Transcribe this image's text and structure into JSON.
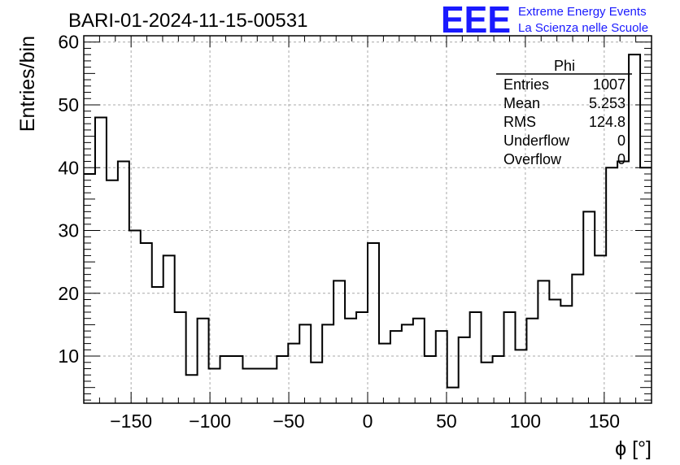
{
  "chart_data": {
    "type": "bar",
    "style": "step-histogram",
    "title": "BARI-01-2024-11-15-00531",
    "xlabel": "ϕ [°]",
    "ylabel": "Entries/bin",
    "xlim": [
      -180,
      180
    ],
    "ylim": [
      2.5,
      61
    ],
    "bin_width": 7.2,
    "x_ticks": [
      -150,
      -100,
      -50,
      0,
      50,
      100,
      150
    ],
    "x_tick_labels": [
      "−150",
      "−100",
      "−50",
      "0",
      "50",
      "100",
      "150"
    ],
    "y_ticks": [
      10,
      20,
      30,
      40,
      50,
      60
    ],
    "y_tick_labels": [
      "10",
      "20",
      "30",
      "40",
      "50",
      "60"
    ],
    "grid": true,
    "x": [
      -176.4,
      -169.2,
      -162,
      -154.8,
      -147.6,
      -140.4,
      -133.2,
      -126,
      -118.8,
      -111.6,
      -104.4,
      -97.2,
      -90,
      -82.8,
      -75.6,
      -68.4,
      -61.2,
      -54,
      -46.8,
      -39.6,
      -32.4,
      -25.2,
      -18,
      -10.8,
      -3.6,
      3.6,
      10.8,
      18,
      25.2,
      32.4,
      39.6,
      46.8,
      54,
      61.2,
      68.4,
      75.6,
      82.8,
      90,
      97.2,
      104.4,
      111.6,
      118.8,
      126,
      133.2,
      140.4,
      147.6,
      154.8,
      162,
      169.2,
      176.4
    ],
    "values": [
      39,
      48,
      38,
      41,
      30,
      28,
      21,
      26,
      17,
      7,
      16,
      8,
      10,
      10,
      8,
      8,
      8,
      10,
      12,
      15,
      9,
      15,
      22,
      16,
      17,
      28,
      12,
      14,
      15,
      16,
      10,
      14,
      5,
      13,
      17,
      9,
      10,
      17,
      11,
      16,
      22,
      19,
      18,
      23,
      33,
      26,
      40,
      41,
      58,
      40
    ],
    "stats_box": {
      "title": "Phi",
      "rows": [
        {
          "label": "Entries",
          "value": "1007"
        },
        {
          "label": "Mean",
          "value": "5.253"
        },
        {
          "label": "RMS",
          "value": "124.8"
        },
        {
          "label": "Underflow",
          "value": "0"
        },
        {
          "label": "Overflow",
          "value": "0"
        }
      ]
    }
  },
  "logo": {
    "mark": "EEE",
    "line1": "Extreme Energy Events",
    "line2": "La Scienza nelle Scuole",
    "color": "#1a1aff"
  }
}
